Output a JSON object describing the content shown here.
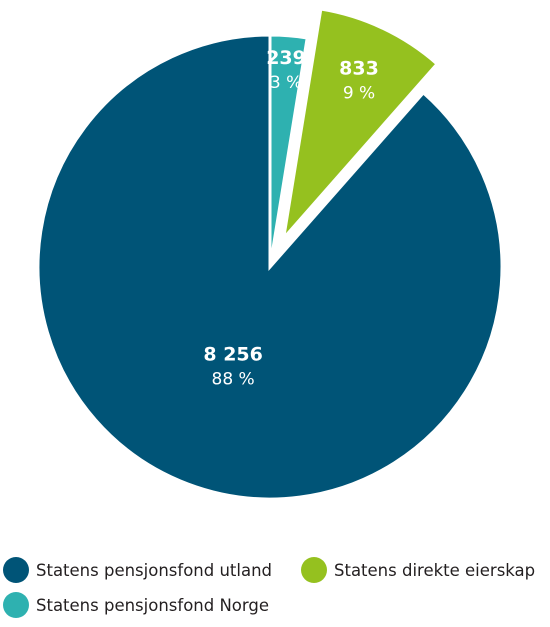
{
  "chart_data": {
    "type": "pie",
    "title": "",
    "slices": [
      {
        "label": "Statens pensjonsfond utland",
        "value": 8256,
        "value_label": "8 256",
        "percent_label": "88 %",
        "color": "#005477",
        "exploded": false
      },
      {
        "label": "Statens direkte eierskap",
        "value": 833,
        "value_label": "833",
        "percent_label": "9 %",
        "color": "#95c11f",
        "exploded": true
      },
      {
        "label": "Statens pensjonsfond Norge",
        "value": 239,
        "value_label": "239",
        "percent_label": "3 %",
        "color": "#2eb1b0",
        "exploded": false
      }
    ],
    "legend": {
      "position": "bottom",
      "items": [
        {
          "label": "Statens pensjonsfond utland",
          "color": "#005477"
        },
        {
          "label": "Statens direkte eierskap",
          "color": "#95c11f"
        },
        {
          "label": "Statens pensjonsfond Norge",
          "color": "#2eb1b0"
        }
      ]
    }
  }
}
